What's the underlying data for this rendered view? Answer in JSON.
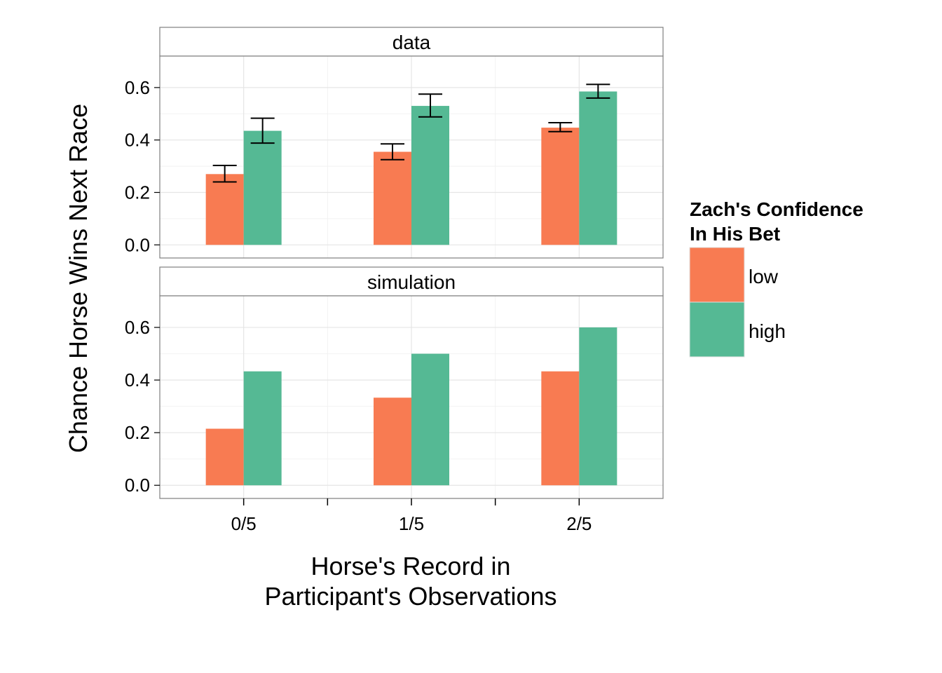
{
  "chart_data": {
    "type": "bar",
    "categories": [
      "0/5",
      "1/5",
      "2/5"
    ],
    "facets": [
      {
        "label": "data",
        "series": [
          {
            "name": "low",
            "values": [
              0.27,
              0.355,
              0.447
            ],
            "err_low": [
              0.24,
              0.325,
              0.432
            ],
            "err_high": [
              0.303,
              0.385,
              0.466
            ]
          },
          {
            "name": "high",
            "values": [
              0.435,
              0.53,
              0.585
            ],
            "err_low": [
              0.388,
              0.488,
              0.56
            ],
            "err_high": [
              0.483,
              0.575,
              0.612
            ]
          }
        ]
      },
      {
        "label": "simulation",
        "series": [
          {
            "name": "low",
            "values": [
              0.215,
              0.333,
              0.433
            ]
          },
          {
            "name": "high",
            "values": [
              0.433,
              0.5,
              0.6
            ]
          }
        ]
      }
    ],
    "ylim": [
      -0.05,
      0.72
    ],
    "yticks": [
      "0.0",
      "0.2",
      "0.4",
      "0.6"
    ],
    "ytick_values": [
      0,
      0.2,
      0.4,
      0.6
    ],
    "xlabel_line1": "Horse's Record in",
    "xlabel_line2": "Participant's Observations",
    "ylabel": "Chance Horse Wins Next Race",
    "legend": {
      "title_line1": "Zach's Confidence",
      "title_line2": "In His Bet",
      "entries": [
        {
          "label": "low",
          "color": "#F87B52"
        },
        {
          "label": "high",
          "color": "#55B994"
        }
      ],
      "position": "right"
    },
    "grid": true
  }
}
